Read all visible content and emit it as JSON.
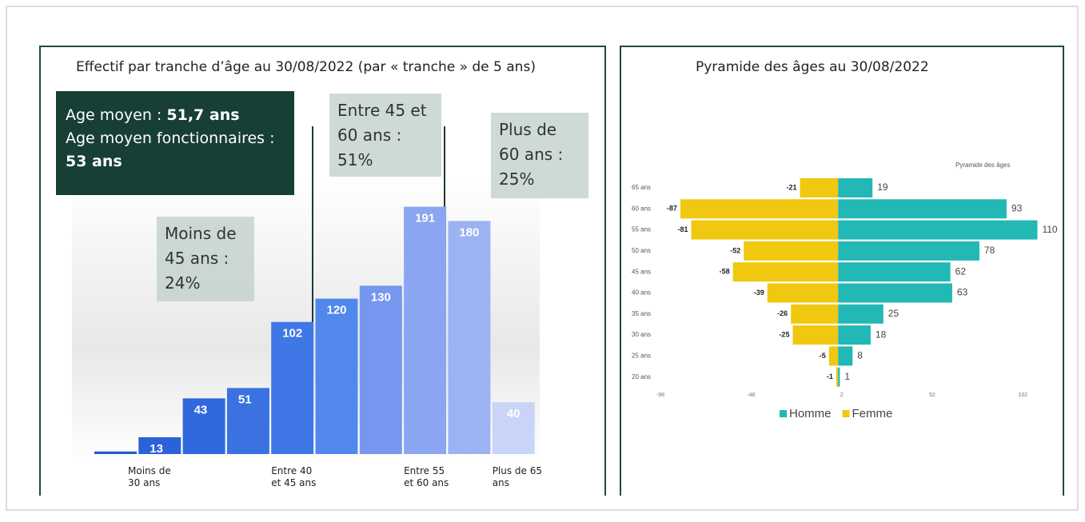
{
  "chart_data": [
    {
      "type": "bar",
      "title": "Effectif par tranche d’âge au 30/08/2022 (par « tranche » de 5 ans)",
      "categories": [
        null,
        "Moins de 30 ans",
        null,
        null,
        "Entre 40 et 45 ans",
        null,
        null,
        "Entre 55 et 60 ans",
        null,
        "Plus de 65 ans"
      ],
      "values": [
        2,
        13,
        43,
        51,
        102,
        120,
        130,
        191,
        180,
        40
      ],
      "colors": [
        "#2a5cc9",
        "#2c62d8",
        "#3069de",
        "#3a72e2",
        "#3f78e6",
        "#5288ec",
        "#7597ef",
        "#8aa6f2",
        "#9cb3f3",
        "#c9d5f8"
      ],
      "average_box": {
        "age_label": "Age moyen :",
        "age_value": "51,7 ans",
        "civil_label": "Age moyen fonctionnaires :",
        "civil_value": "53 ans"
      },
      "annotations": [
        "Moins de 45 ans : 24%",
        "Entre 45 et 60 ans : 51%",
        "Plus de 60 ans : 25%"
      ]
    },
    {
      "type": "bar",
      "orientation": "horizontal",
      "title": "Pyramide des âges au 30/08/2022",
      "subtitle": "Pyramide des âges",
      "categories": [
        "65 ans",
        "60 ans",
        "55 ans",
        "50 ans",
        "45 ans",
        "40 ans",
        "35 ans",
        "30 ans",
        "25 ans",
        "20 ans"
      ],
      "series": [
        {
          "name": "Homme",
          "color": "#22b8b6",
          "values": [
            19,
            93,
            110,
            78,
            62,
            63,
            25,
            18,
            8,
            1
          ]
        },
        {
          "name": "Femme",
          "color": "#f0c80f",
          "values": [
            -21,
            -87,
            -81,
            -52,
            -58,
            -39,
            -26,
            -25,
            -5,
            -1
          ]
        }
      ],
      "xlim": [
        -98,
        112
      ],
      "xticks": [
        -98,
        -48,
        2,
        52,
        102
      ],
      "legend": "bottom"
    }
  ]
}
